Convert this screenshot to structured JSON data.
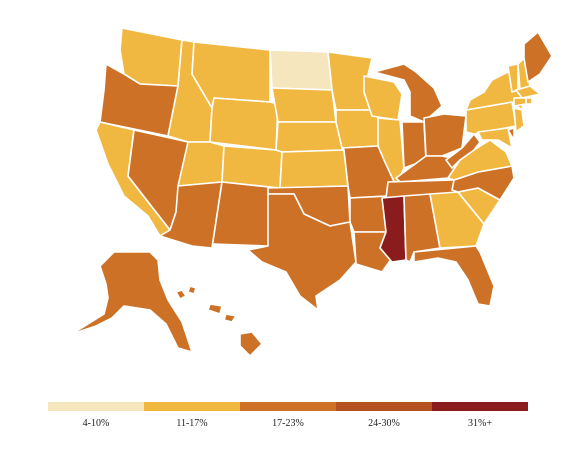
{
  "colors": {
    "c1": "#f5e6bd",
    "c2": "#f0b840",
    "c3": "#cc7126",
    "c4": "#b35220",
    "c5": "#8b1c1e"
  },
  "legend": {
    "items": [
      {
        "label": "4-10%",
        "color": "#f5e6bd"
      },
      {
        "label": "11-17%",
        "color": "#f0b840"
      },
      {
        "label": "17-23%",
        "color": "#cc7126"
      },
      {
        "label": "24-30%",
        "color": "#b35220"
      },
      {
        "label": "31%+",
        "color": "#8b1c1e"
      }
    ]
  },
  "states": [
    {
      "abbr": "WA",
      "bin": 2
    },
    {
      "abbr": "OR",
      "bin": 3
    },
    {
      "abbr": "CA",
      "bin": 2
    },
    {
      "abbr": "NV",
      "bin": 3
    },
    {
      "abbr": "ID",
      "bin": 2
    },
    {
      "abbr": "MT",
      "bin": 2
    },
    {
      "abbr": "WY",
      "bin": 2
    },
    {
      "abbr": "UT",
      "bin": 2
    },
    {
      "abbr": "CO",
      "bin": 2
    },
    {
      "abbr": "AZ",
      "bin": 3
    },
    {
      "abbr": "NM",
      "bin": 3
    },
    {
      "abbr": "ND",
      "bin": 1
    },
    {
      "abbr": "SD",
      "bin": 2
    },
    {
      "abbr": "NE",
      "bin": 2
    },
    {
      "abbr": "KS",
      "bin": 2
    },
    {
      "abbr": "OK",
      "bin": 3
    },
    {
      "abbr": "TX",
      "bin": 3
    },
    {
      "abbr": "MN",
      "bin": 2
    },
    {
      "abbr": "IA",
      "bin": 2
    },
    {
      "abbr": "MO",
      "bin": 3
    },
    {
      "abbr": "AR",
      "bin": 3
    },
    {
      "abbr": "LA",
      "bin": 3
    },
    {
      "abbr": "WI",
      "bin": 2
    },
    {
      "abbr": "IL",
      "bin": 2
    },
    {
      "abbr": "MI",
      "bin": 3
    },
    {
      "abbr": "IN",
      "bin": 3
    },
    {
      "abbr": "OH",
      "bin": 3
    },
    {
      "abbr": "KY",
      "bin": 3
    },
    {
      "abbr": "TN",
      "bin": 3
    },
    {
      "abbr": "MS",
      "bin": 5
    },
    {
      "abbr": "AL",
      "bin": 3
    },
    {
      "abbr": "GA",
      "bin": 2
    },
    {
      "abbr": "FL",
      "bin": 3
    },
    {
      "abbr": "SC",
      "bin": 2
    },
    {
      "abbr": "NC",
      "bin": 3
    },
    {
      "abbr": "VA",
      "bin": 2
    },
    {
      "abbr": "WV",
      "bin": 3
    },
    {
      "abbr": "PA",
      "bin": 2
    },
    {
      "abbr": "NY",
      "bin": 2
    },
    {
      "abbr": "VT",
      "bin": 2
    },
    {
      "abbr": "NH",
      "bin": 2
    },
    {
      "abbr": "ME",
      "bin": 3
    },
    {
      "abbr": "MA",
      "bin": 2
    },
    {
      "abbr": "RI",
      "bin": 2
    },
    {
      "abbr": "CT",
      "bin": 2
    },
    {
      "abbr": "NJ",
      "bin": 2
    },
    {
      "abbr": "DE",
      "bin": 3
    },
    {
      "abbr": "MD",
      "bin": 2
    },
    {
      "abbr": "AK",
      "bin": 3
    },
    {
      "abbr": "HI",
      "bin": 3
    }
  ]
}
